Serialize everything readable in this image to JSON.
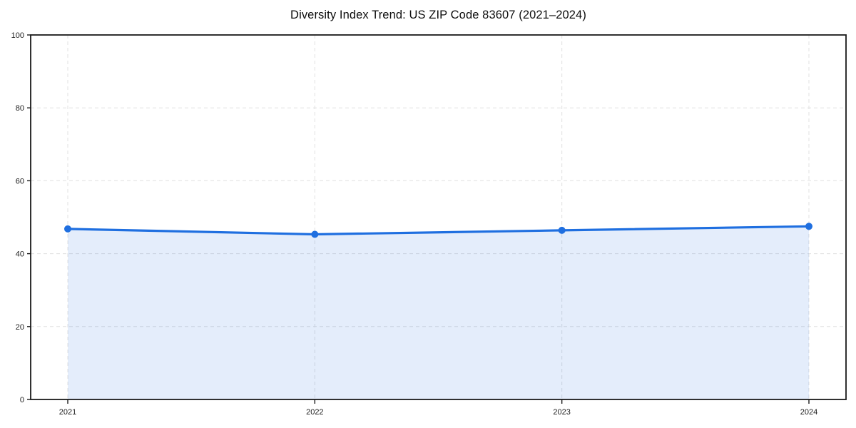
{
  "title": "Diversity Index Trend: US ZIP Code 83607 (2021–2024)",
  "chart_data": {
    "type": "area",
    "title": "Diversity Index Trend: US ZIP Code 83607 (2021–2024)",
    "x": [
      2021,
      2022,
      2023,
      2024
    ],
    "xticks": [
      "2021",
      "2022",
      "2023",
      "2024"
    ],
    "series": [
      {
        "name": "Diversity Index",
        "values": [
          46.8,
          45.3,
          46.4,
          47.5
        ]
      }
    ],
    "xlabel": "",
    "ylabel": "",
    "ylim": [
      0,
      100
    ],
    "yticks": [
      0,
      20,
      40,
      60,
      80,
      100
    ],
    "grid": true,
    "grid_style": "dashed",
    "legend": false,
    "colors": {
      "line": "#1f6fe0",
      "marker": "#1f6fe0",
      "fill": "rgba(31,111,224,0.12)",
      "grid": "#e0e0e0",
      "axis": "#1a1a1a",
      "title_text": "#0d0d0d",
      "tick_text": "#1a1a1a",
      "background": "#ffffff"
    },
    "marker_radius": 5,
    "line_width": 3.2
  }
}
